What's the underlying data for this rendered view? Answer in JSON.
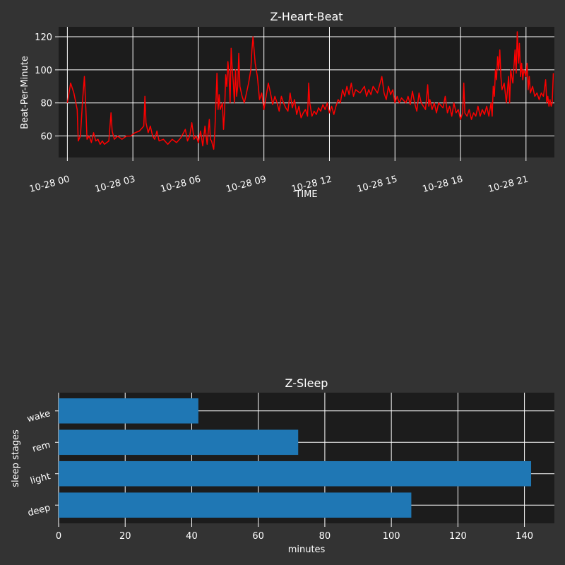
{
  "style": {
    "figure_bg": "#333333",
    "axes_bg": "#1c1c1c",
    "grid_color": "#ffffff",
    "text_color": "#ffffff",
    "line_color": "#ff0000",
    "bar_color": "#1f77b4"
  },
  "chart_data": [
    {
      "type": "line",
      "title": "Z-Heart-Beat",
      "xlabel": "TIME",
      "ylabel": "Beat-Per-Minute",
      "grid": true,
      "x_unit": "hours since 10-28 00",
      "xlim": [
        -0.4,
        22.3
      ],
      "ylim": [
        47,
        126
      ],
      "xtick_values": [
        0,
        3,
        6,
        9,
        12,
        15,
        18,
        21
      ],
      "xtick_labels": [
        "10-28 00",
        "10-28 03",
        "10-28 06",
        "10-28 09",
        "10-28 12",
        "10-28 15",
        "10-28 18",
        "10-28 21"
      ],
      "yticks": [
        60,
        80,
        100,
        120
      ],
      "series": [
        {
          "color": "#ff0000",
          "points": [
            [
              0.0,
              80
            ],
            [
              0.15,
              92
            ],
            [
              0.3,
              86
            ],
            [
              0.45,
              76
            ],
            [
              0.5,
              57
            ],
            [
              0.6,
              60
            ],
            [
              0.7,
              82
            ],
            [
              0.78,
              96
            ],
            [
              0.85,
              75
            ],
            [
              0.9,
              58
            ],
            [
              1.0,
              60
            ],
            [
              1.1,
              56
            ],
            [
              1.2,
              62
            ],
            [
              1.3,
              57
            ],
            [
              1.4,
              58
            ],
            [
              1.5,
              55
            ],
            [
              1.6,
              57
            ],
            [
              1.7,
              55
            ],
            [
              1.8,
              56
            ],
            [
              1.9,
              57
            ],
            [
              2.0,
              74
            ],
            [
              2.05,
              63
            ],
            [
              2.15,
              58
            ],
            [
              2.3,
              60
            ],
            [
              2.5,
              58
            ],
            [
              2.7,
              60
            ],
            [
              2.9,
              60
            ],
            [
              3.1,
              62
            ],
            [
              3.3,
              63
            ],
            [
              3.5,
              66
            ],
            [
              3.55,
              84
            ],
            [
              3.6,
              68
            ],
            [
              3.7,
              62
            ],
            [
              3.8,
              66
            ],
            [
              3.9,
              60
            ],
            [
              4.0,
              58
            ],
            [
              4.1,
              63
            ],
            [
              4.2,
              57
            ],
            [
              4.4,
              58
            ],
            [
              4.6,
              55
            ],
            [
              4.8,
              58
            ],
            [
              5.0,
              56
            ],
            [
              5.2,
              59
            ],
            [
              5.4,
              64
            ],
            [
              5.5,
              57
            ],
            [
              5.6,
              60
            ],
            [
              5.7,
              68
            ],
            [
              5.8,
              58
            ],
            [
              5.9,
              60
            ],
            [
              6.0,
              56
            ],
            [
              6.1,
              63
            ],
            [
              6.2,
              54
            ],
            [
              6.3,
              66
            ],
            [
              6.4,
              55
            ],
            [
              6.5,
              70
            ],
            [
              6.55,
              58
            ],
            [
              6.6,
              57
            ],
            [
              6.7,
              52
            ],
            [
              6.75,
              62
            ],
            [
              6.8,
              80
            ],
            [
              6.85,
              98
            ],
            [
              6.9,
              76
            ],
            [
              6.95,
              85
            ],
            [
              7.0,
              76
            ],
            [
              7.1,
              80
            ],
            [
              7.15,
              64
            ],
            [
              7.2,
              75
            ],
            [
              7.25,
              97
            ],
            [
              7.3,
              90
            ],
            [
              7.35,
              105
            ],
            [
              7.4,
              97
            ],
            [
              7.45,
              80
            ],
            [
              7.5,
              113
            ],
            [
              7.55,
              100
            ],
            [
              7.6,
              92
            ],
            [
              7.65,
              80
            ],
            [
              7.7,
              100
            ],
            [
              7.75,
              84
            ],
            [
              7.8,
              90
            ],
            [
              7.85,
              110
            ],
            [
              7.9,
              90
            ],
            [
              8.0,
              84
            ],
            [
              8.1,
              80
            ],
            [
              8.2,
              86
            ],
            [
              8.3,
              92
            ],
            [
              8.4,
              100
            ],
            [
              8.45,
              112
            ],
            [
              8.5,
              120
            ],
            [
              8.55,
              112
            ],
            [
              8.6,
              104
            ],
            [
              8.7,
              96
            ],
            [
              8.8,
              82
            ],
            [
              8.9,
              86
            ],
            [
              9.0,
              76
            ],
            [
              9.1,
              84
            ],
            [
              9.2,
              92
            ],
            [
              9.3,
              86
            ],
            [
              9.4,
              79
            ],
            [
              9.5,
              84
            ],
            [
              9.6,
              80
            ],
            [
              9.7,
              75
            ],
            [
              9.8,
              84
            ],
            [
              9.9,
              80
            ],
            [
              10.0,
              77
            ],
            [
              10.1,
              75
            ],
            [
              10.2,
              86
            ],
            [
              10.3,
              77
            ],
            [
              10.4,
              82
            ],
            [
              10.5,
              73
            ],
            [
              10.6,
              78
            ],
            [
              10.7,
              71
            ],
            [
              10.8,
              74
            ],
            [
              10.9,
              76
            ],
            [
              11.0,
              72
            ],
            [
              11.05,
              92
            ],
            [
              11.1,
              80
            ],
            [
              11.2,
              72
            ],
            [
              11.3,
              75
            ],
            [
              11.4,
              73
            ],
            [
              11.5,
              77
            ],
            [
              11.6,
              75
            ],
            [
              11.7,
              79
            ],
            [
              11.8,
              76
            ],
            [
              11.9,
              80
            ],
            [
              12.0,
              74
            ],
            [
              12.1,
              78
            ],
            [
              12.2,
              73
            ],
            [
              12.3,
              78
            ],
            [
              12.4,
              82
            ],
            [
              12.5,
              80
            ],
            [
              12.6,
              88
            ],
            [
              12.7,
              84
            ],
            [
              12.8,
              90
            ],
            [
              12.9,
              85
            ],
            [
              13.0,
              92
            ],
            [
              13.1,
              84
            ],
            [
              13.2,
              88
            ],
            [
              13.4,
              86
            ],
            [
              13.6,
              90
            ],
            [
              13.7,
              84
            ],
            [
              13.8,
              88
            ],
            [
              13.9,
              85
            ],
            [
              14.0,
              90
            ],
            [
              14.2,
              86
            ],
            [
              14.4,
              96
            ],
            [
              14.5,
              86
            ],
            [
              14.6,
              82
            ],
            [
              14.7,
              90
            ],
            [
              14.8,
              85
            ],
            [
              14.9,
              88
            ],
            [
              15.0,
              80
            ],
            [
              15.1,
              84
            ],
            [
              15.2,
              80
            ],
            [
              15.3,
              83
            ],
            [
              15.5,
              80
            ],
            [
              15.6,
              84
            ],
            [
              15.7,
              79
            ],
            [
              15.8,
              87
            ],
            [
              15.9,
              80
            ],
            [
              16.0,
              75
            ],
            [
              16.1,
              86
            ],
            [
              16.2,
              80
            ],
            [
              16.4,
              76
            ],
            [
              16.5,
              91
            ],
            [
              16.55,
              78
            ],
            [
              16.6,
              82
            ],
            [
              16.7,
              76
            ],
            [
              16.8,
              80
            ],
            [
              16.9,
              74
            ],
            [
              17.0,
              80
            ],
            [
              17.2,
              77
            ],
            [
              17.3,
              84
            ],
            [
              17.4,
              74
            ],
            [
              17.5,
              78
            ],
            [
              17.6,
              72
            ],
            [
              17.7,
              80
            ],
            [
              17.8,
              74
            ],
            [
              17.9,
              76
            ],
            [
              18.0,
              70
            ],
            [
              18.1,
              74
            ],
            [
              18.15,
              92
            ],
            [
              18.2,
              74
            ],
            [
              18.3,
              72
            ],
            [
              18.4,
              76
            ],
            [
              18.5,
              70
            ],
            [
              18.6,
              74
            ],
            [
              18.7,
              72
            ],
            [
              18.8,
              78
            ],
            [
              18.9,
              72
            ],
            [
              19.0,
              76
            ],
            [
              19.1,
              73
            ],
            [
              19.2,
              78
            ],
            [
              19.3,
              72
            ],
            [
              19.4,
              80
            ],
            [
              19.45,
              72
            ],
            [
              19.5,
              90
            ],
            [
              19.55,
              84
            ],
            [
              19.6,
              100
            ],
            [
              19.65,
              94
            ],
            [
              19.7,
              108
            ],
            [
              19.75,
              100
            ],
            [
              19.8,
              112
            ],
            [
              19.85,
              96
            ],
            [
              19.9,
              88
            ],
            [
              20.0,
              92
            ],
            [
              20.1,
              80
            ],
            [
              20.2,
              96
            ],
            [
              20.25,
              80
            ],
            [
              20.3,
              100
            ],
            [
              20.4,
              92
            ],
            [
              20.5,
              112
            ],
            [
              20.55,
              98
            ],
            [
              20.6,
              123
            ],
            [
              20.65,
              104
            ],
            [
              20.7,
              116
            ],
            [
              20.75,
              96
            ],
            [
              20.8,
              104
            ],
            [
              20.85,
              94
            ],
            [
              20.9,
              100
            ],
            [
              21.0,
              96
            ],
            [
              21.05,
              104
            ],
            [
              21.1,
              88
            ],
            [
              21.15,
              96
            ],
            [
              21.2,
              86
            ],
            [
              21.3,
              90
            ],
            [
              21.4,
              84
            ],
            [
              21.5,
              86
            ],
            [
              21.6,
              82
            ],
            [
              21.7,
              86
            ],
            [
              21.8,
              84
            ],
            [
              21.9,
              94
            ],
            [
              21.95,
              80
            ],
            [
              22.0,
              84
            ],
            [
              22.05,
              78
            ],
            [
              22.1,
              82
            ],
            [
              22.15,
              78
            ],
            [
              22.2,
              80
            ],
            [
              22.25,
              98
            ]
          ]
        }
      ]
    },
    {
      "type": "bar",
      "orientation": "horizontal",
      "title": "Z-Sleep",
      "xlabel": "minutes",
      "ylabel": "sleep stages",
      "grid": true,
      "categories": [
        "deep",
        "light",
        "rem",
        "wake"
      ],
      "values": [
        106,
        142,
        72,
        42
      ],
      "xlim": [
        0,
        149
      ],
      "xticks": [
        0,
        20,
        40,
        60,
        80,
        100,
        120,
        140
      ],
      "color": "#1f77b4"
    }
  ]
}
